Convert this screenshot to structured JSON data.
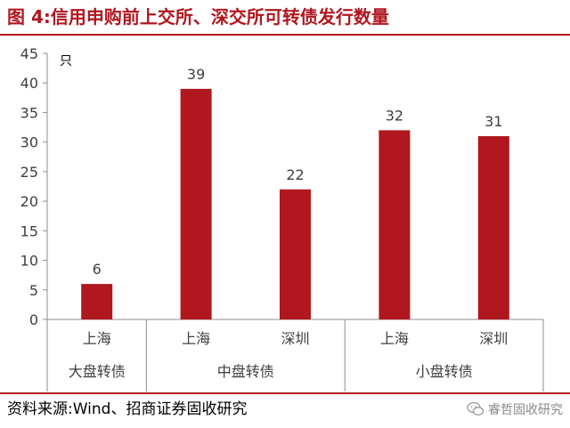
{
  "header": {
    "title": "图 4:信用申购前上交所、深交所可转债发行数量"
  },
  "chart_data": {
    "type": "bar",
    "unit_label": "只",
    "y_ticks": [
      "0",
      "5",
      "10",
      "15",
      "20",
      "25",
      "30",
      "35",
      "40",
      "45"
    ],
    "ylim": [
      0,
      45
    ],
    "grid": false,
    "bar_color": "#b0171f",
    "categories": [
      "上海",
      "上海",
      "深圳",
      "上海",
      "深圳"
    ],
    "groups": [
      {
        "label": "大盘转债",
        "count": 1
      },
      {
        "label": "中盘转债",
        "count": 2
      },
      {
        "label": "小盘转债",
        "count": 2
      }
    ],
    "values": [
      6,
      39,
      22,
      32,
      31
    ],
    "value_labels": [
      "6",
      "39",
      "22",
      "32",
      "31"
    ]
  },
  "footer": {
    "source": "资料来源:Wind、招商证券固收研究",
    "watermark": "睿哲固收研究"
  }
}
